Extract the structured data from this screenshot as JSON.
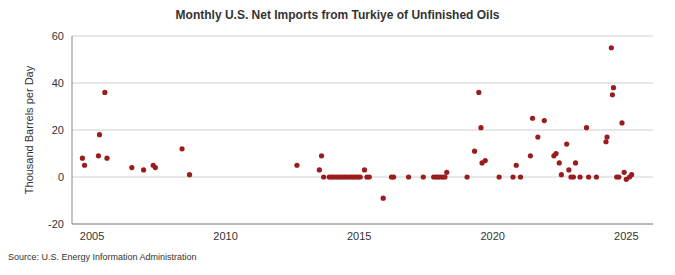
{
  "chart_data": {
    "type": "scatter",
    "title": "Monthly U.S. Net Imports from Turkiye of Unfinished Oils",
    "y_label": "Thousand Barrels per Day",
    "source": "Source: U.S. Energy Information Administration",
    "x": [
      2004.64,
      2004.72,
      2005.24,
      2005.28,
      2005.48,
      2005.56,
      2006.49,
      2006.93,
      2007.29,
      2007.37,
      2008.37,
      2008.65,
      2012.67,
      2013.51,
      2013.59,
      2013.67,
      2013.88,
      2013.96,
      2014.04,
      2014.13,
      2014.21,
      2014.29,
      2014.38,
      2014.46,
      2014.54,
      2014.63,
      2014.71,
      2014.79,
      2014.88,
      2014.96,
      2015.04,
      2015.2,
      2015.29,
      2015.38,
      2015.9,
      2016.21,
      2016.29,
      2016.85,
      2017.4,
      2017.79,
      2017.88,
      2017.96,
      2018.04,
      2018.13,
      2018.21,
      2018.28,
      2019.04,
      2019.32,
      2019.48,
      2019.56,
      2019.6,
      2019.72,
      2020.24,
      2020.76,
      2020.88,
      2021.04,
      2021.41,
      2021.49,
      2021.69,
      2021.93,
      2022.29,
      2022.37,
      2022.49,
      2022.57,
      2022.77,
      2022.85,
      2022.93,
      2023.02,
      2023.1,
      2023.27,
      2023.51,
      2023.59,
      2023.88,
      2024.24,
      2024.28,
      2024.44,
      2024.48,
      2024.52,
      2024.64,
      2024.72,
      2024.84,
      2024.92,
      2025.0,
      2025.12,
      2025.2
    ],
    "values": [
      8,
      5,
      9,
      18,
      36,
      8,
      4,
      3,
      5,
      4,
      12,
      1,
      5,
      3,
      9,
      0,
      0,
      0,
      0,
      0,
      0,
      0,
      0,
      0,
      0,
      0,
      0,
      0,
      0,
      0,
      0,
      3,
      0,
      0,
      -9,
      0,
      0,
      0,
      0,
      0,
      0,
      0,
      0,
      0,
      0,
      2,
      0,
      11,
      36,
      21,
      6,
      7,
      0,
      0,
      5,
      0,
      9,
      25,
      17,
      24,
      9,
      10,
      6,
      1,
      14,
      3,
      0,
      0,
      6,
      0,
      21,
      0,
      0,
      15,
      17,
      55,
      35,
      38,
      0,
      0,
      23,
      2,
      -1,
      0,
      1
    ],
    "color": "#9b1c1c",
    "marker": "circle",
    "xlim": [
      2004.25,
      2026
    ],
    "xticks": [
      2005,
      2010,
      2015,
      2020,
      2025
    ],
    "ylim": [
      -20,
      60
    ],
    "yticks": [
      -20,
      0,
      20,
      40,
      60
    ],
    "grid": true
  }
}
